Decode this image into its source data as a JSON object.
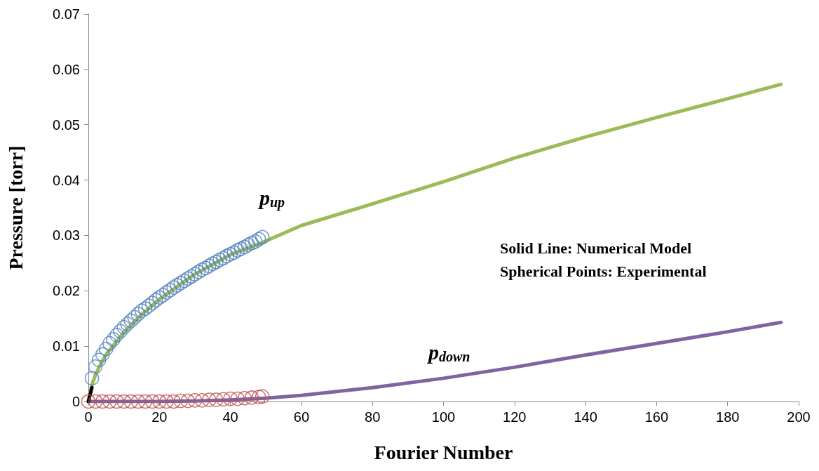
{
  "chart_data": {
    "type": "line",
    "xlabel": "Fourier Number",
    "ylabel": "Pressure [torr]",
    "xlim": [
      0,
      200
    ],
    "xticks": [
      0,
      20,
      40,
      60,
      80,
      100,
      120,
      140,
      160,
      180,
      200
    ],
    "ylim": [
      0,
      0.07
    ],
    "yticks": [
      0,
      0.01,
      0.02,
      0.03,
      0.04,
      0.05,
      0.06,
      0.07
    ],
    "grid": false,
    "annotations": [
      "p$_{up}$",
      "p$_{down}$",
      "Solid Line: Numerical Model",
      "Spherical Points: Experimental"
    ],
    "series": [
      {
        "color": "#9bbb59",
        "marker": "none",
        "x": [
          0,
          1,
          2,
          3,
          5,
          10,
          15,
          20,
          30,
          40,
          50,
          60,
          80,
          100,
          120,
          140,
          160,
          180,
          195
        ],
        "values": [
          0,
          0.003,
          0.0048,
          0.0062,
          0.0085,
          0.0125,
          0.0157,
          0.0185,
          0.023,
          0.0265,
          0.029,
          0.0318,
          0.0357,
          0.0397,
          0.044,
          0.0478,
          0.0513,
          0.0547,
          0.0573
        ]
      },
      {
        "color": "#8064a2",
        "marker": "none",
        "x": [
          0,
          10,
          20,
          30,
          40,
          50,
          60,
          80,
          100,
          120,
          140,
          160,
          180,
          195
        ],
        "values": [
          0,
          0,
          0,
          0.0001,
          0.0003,
          0.0006,
          0.0011,
          0.0025,
          0.0042,
          0.0062,
          0.0084,
          0.0105,
          0.0126,
          0.0143
        ]
      },
      {
        "color": "#000000",
        "marker": "none",
        "x": [
          0,
          1
        ],
        "values": [
          0,
          0.0025
        ]
      },
      {
        "type": "scatter",
        "color": "#4f81bd",
        "marker": "circle",
        "x": [
          1,
          2,
          3,
          4,
          5,
          6,
          7,
          8,
          9,
          10,
          11,
          12,
          13,
          14,
          15,
          16,
          17,
          18,
          19,
          20,
          21,
          22,
          23,
          24,
          25,
          26,
          27,
          28,
          29,
          30,
          31,
          32,
          33,
          34,
          35,
          36,
          37,
          38,
          39,
          40,
          41,
          42,
          43,
          44,
          45,
          46,
          47,
          48,
          49
        ],
        "values": [
          0.0042,
          0.0063,
          0.0075,
          0.0085,
          0.0095,
          0.0105,
          0.0112,
          0.012,
          0.0127,
          0.0134,
          0.014,
          0.0146,
          0.0152,
          0.0158,
          0.0164,
          0.0168,
          0.0173,
          0.0178,
          0.0183,
          0.0188,
          0.0192,
          0.0197,
          0.0201,
          0.0206,
          0.021,
          0.0214,
          0.0218,
          0.0222,
          0.0226,
          0.023,
          0.0234,
          0.0238,
          0.0241,
          0.0245,
          0.0249,
          0.0252,
          0.0256,
          0.0259,
          0.0263,
          0.0266,
          0.0269,
          0.0273,
          0.0276,
          0.0279,
          0.0283,
          0.0286,
          0.0289,
          0.0293,
          0.0297
        ]
      },
      {
        "type": "scatter",
        "color": "#c0504d",
        "marker": "circle",
        "x": [
          0,
          2,
          4,
          6,
          8,
          10,
          12,
          14,
          16,
          18,
          20,
          22,
          24,
          26,
          28,
          30,
          32,
          34,
          36,
          38,
          40,
          42,
          44,
          46,
          48,
          49
        ],
        "values": [
          0,
          0,
          0,
          0,
          0,
          0,
          0,
          0,
          0,
          0,
          0,
          0,
          0,
          0.0001,
          0.0001,
          0.0002,
          0.0002,
          0.0003,
          0.0003,
          0.0004,
          0.0005,
          0.0005,
          0.0006,
          0.0007,
          0.0008,
          0.0009
        ]
      }
    ]
  }
}
